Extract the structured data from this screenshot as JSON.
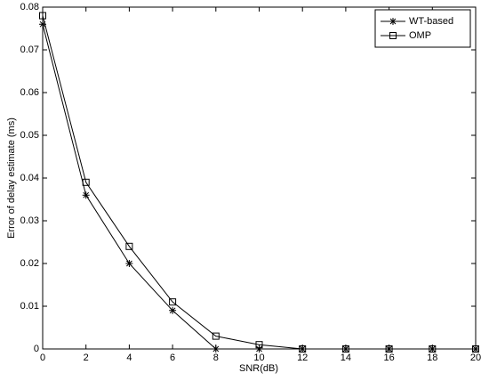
{
  "chart_data": {
    "type": "line",
    "x_label": "SNR(dB)",
    "y_label": "Error of delay estimate (ms)",
    "x": [
      0,
      2,
      4,
      6,
      8,
      10,
      12,
      14,
      16,
      18,
      20
    ],
    "series": [
      {
        "name": "WT-based",
        "color": "#000000",
        "marker": "asterisk",
        "values": [
          0.076,
          0.036,
          0.02,
          0.009,
          0,
          0,
          0,
          0,
          0,
          0,
          0
        ]
      },
      {
        "name": "OMP",
        "color": "#000000",
        "marker": "square",
        "values": [
          0.078,
          0.039,
          0.024,
          0.011,
          0.003,
          0.001,
          0,
          0,
          0,
          0,
          0
        ]
      }
    ],
    "xlim": [
      0,
      20
    ],
    "xticks": [
      0,
      2,
      4,
      6,
      8,
      10,
      12,
      14,
      16,
      18,
      20
    ],
    "ylim": [
      0,
      0.08
    ],
    "yticks": [
      0,
      0.01,
      0.02,
      0.03,
      0.04,
      0.05,
      0.06,
      0.07,
      0.08
    ],
    "grid": false,
    "legend": "top-right"
  }
}
